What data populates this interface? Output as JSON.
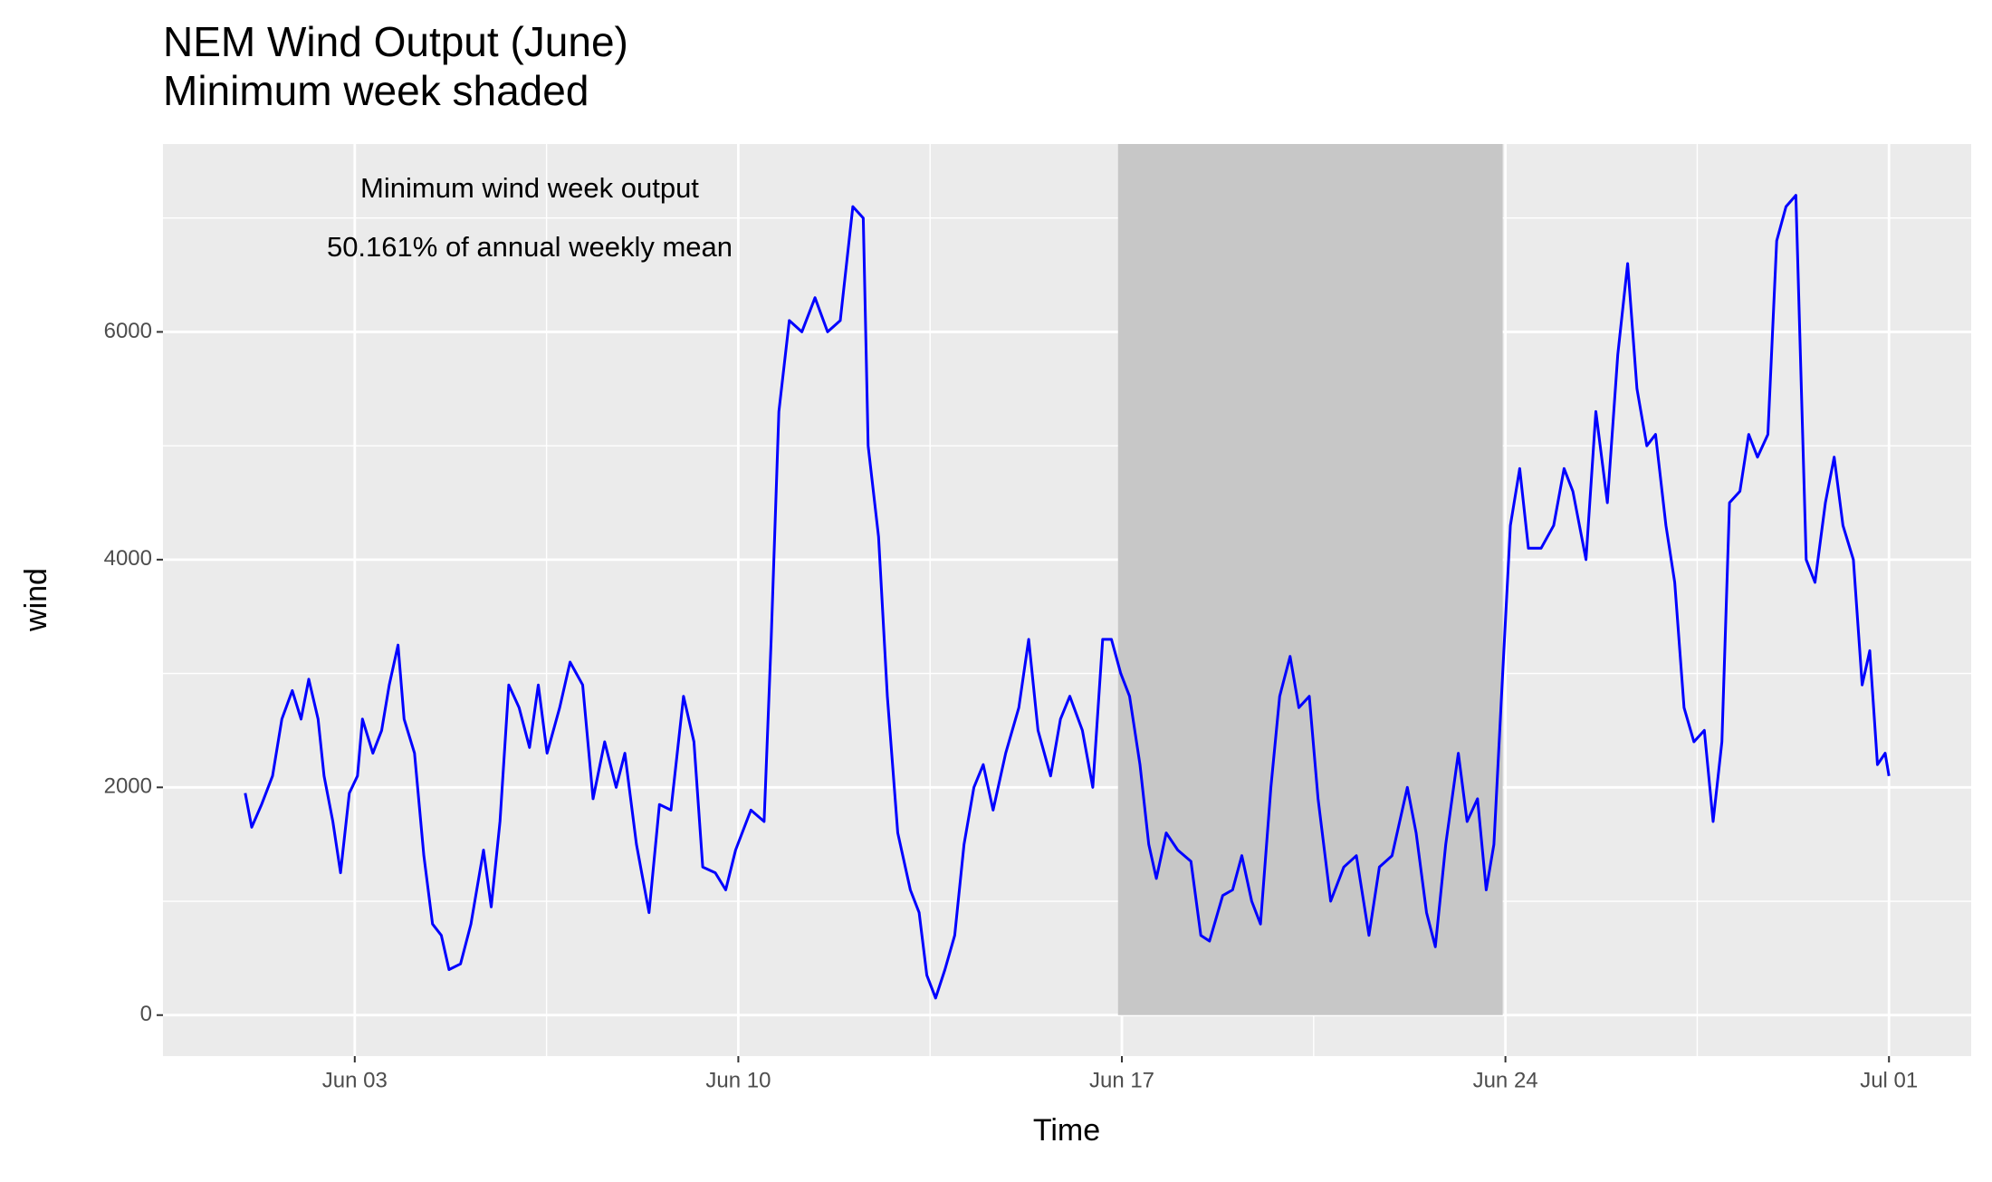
{
  "chart_data": {
    "type": "line",
    "title": "NEM Wind Output (June)",
    "subtitle": "Minimum week shaded",
    "xlabel": "Time",
    "ylabel": "wind",
    "annotation": [
      "Minimum wind week output",
      "50.161% of annual weekly mean"
    ],
    "xlim": [
      -0.5,
      32.5
    ],
    "ylim": [
      -360,
      7650
    ],
    "xticks": [
      {
        "value": 3,
        "label": "Jun 03"
      },
      {
        "value": 10,
        "label": "Jun 10"
      },
      {
        "value": 17,
        "label": "Jun 17"
      },
      {
        "value": 24,
        "label": "Jun 24"
      },
      {
        "value": 31,
        "label": "Jul 01"
      }
    ],
    "yticks": [
      0,
      2000,
      4000,
      6000
    ],
    "xminor": [
      6.5,
      13.5,
      20.5,
      27.5
    ],
    "yminor": [
      1000,
      3000,
      5000,
      7000
    ],
    "grid": true,
    "panel_color": "#ebebeb",
    "shade": {
      "xmin": 16.93,
      "xmax": 23.95,
      "ymin": 0,
      "color": "#c7c7c7"
    },
    "x": [
      1.0,
      1.12,
      1.3,
      1.5,
      1.67,
      1.86,
      2.02,
      2.16,
      2.33,
      2.44,
      2.6,
      2.74,
      2.9,
      3.05,
      3.14,
      3.33,
      3.49,
      3.63,
      3.79,
      3.9,
      4.09,
      4.26,
      4.42,
      4.58,
      4.72,
      4.93,
      5.12,
      5.35,
      5.49,
      5.65,
      5.81,
      6.0,
      6.19,
      6.35,
      6.51,
      6.74,
      6.93,
      7.16,
      7.35,
      7.56,
      7.77,
      7.93,
      8.14,
      8.37,
      8.56,
      8.77,
      9.0,
      9.19,
      9.35,
      9.58,
      9.77,
      9.95,
      10.23,
      10.47,
      10.6,
      10.74,
      10.93,
      11.16,
      11.4,
      11.63,
      11.86,
      12.09,
      12.28,
      12.37,
      12.56,
      12.72,
      12.91,
      13.14,
      13.3,
      13.44,
      13.6,
      13.77,
      13.95,
      14.12,
      14.3,
      14.47,
      14.65,
      14.88,
      15.12,
      15.3,
      15.47,
      15.7,
      15.88,
      16.05,
      16.28,
      16.47,
      16.65,
      16.81,
      16.98,
      17.14,
      17.33,
      17.49,
      17.63,
      17.81,
      18.02,
      18.26,
      18.44,
      18.6,
      18.84,
      19.02,
      19.19,
      19.37,
      19.53,
      19.72,
      19.88,
      20.07,
      20.23,
      20.42,
      20.58,
      20.81,
      21.05,
      21.28,
      21.51,
      21.7,
      21.93,
      22.21,
      22.37,
      22.56,
      22.72,
      22.91,
      23.14,
      23.3,
      23.49,
      23.65,
      23.79,
      23.95,
      24.09,
      24.26,
      24.42,
      24.65,
      24.88,
      25.07,
      25.23,
      25.47,
      25.65,
      25.86,
      26.05,
      26.23,
      26.4,
      26.58,
      26.74,
      26.93,
      27.09,
      27.26,
      27.44,
      27.63,
      27.79,
      27.95,
      28.09,
      28.28,
      28.44,
      28.6,
      28.79,
      28.95,
      29.12,
      29.3,
      29.49,
      29.65,
      29.84,
      30.0,
      30.16,
      30.35,
      30.51,
      30.65,
      30.79,
      30.93,
      31.0
    ],
    "series": [
      {
        "color": "#0000ff",
        "values": [
          1950,
          1650,
          1850,
          2100,
          2600,
          2850,
          2600,
          2950,
          2600,
          2100,
          1700,
          1250,
          1950,
          2100,
          2600,
          2300,
          2500,
          2900,
          3250,
          2600,
          2300,
          1400,
          800,
          700,
          400,
          450,
          800,
          1450,
          950,
          1700,
          2900,
          2700,
          2350,
          2900,
          2300,
          2700,
          3100,
          2900,
          1900,
          2400,
          2000,
          2300,
          1500,
          900,
          1850,
          1800,
          2800,
          2400,
          1300,
          1250,
          1100,
          1450,
          1800,
          1700,
          3300,
          5300,
          6100,
          6000,
          6300,
          6000,
          6100,
          7100,
          7000,
          5000,
          4200,
          2800,
          1600,
          1100,
          900,
          350,
          150,
          400,
          700,
          1500,
          2000,
          2200,
          1800,
          2300,
          2700,
          3300,
          2500,
          2100,
          2600,
          2800,
          2500,
          2000,
          3300,
          3300,
          3000,
          2800,
          2200,
          1500,
          1200,
          1600,
          1450,
          1350,
          700,
          650,
          1050,
          1100,
          1400,
          1000,
          800,
          2000,
          2800,
          3150,
          2700,
          2800,
          1900,
          1000,
          1300,
          1400,
          700,
          1300,
          1400,
          2000,
          1600,
          900,
          600,
          1500,
          2300,
          1700,
          1900,
          1100,
          1500,
          3000,
          4300,
          4800,
          4100,
          4100,
          4300,
          4800,
          4600,
          4000,
          5300,
          4500,
          5800,
          6600,
          5500,
          5000,
          5100,
          4300,
          3800,
          2700,
          2400,
          2500,
          1700,
          2400,
          4500,
          4600,
          5100,
          4900,
          5100,
          6800,
          7100,
          7200,
          4000,
          3800,
          4500,
          4900,
          4300,
          4000,
          2900,
          3200,
          2200,
          2300,
          2100
        ]
      }
    ]
  }
}
